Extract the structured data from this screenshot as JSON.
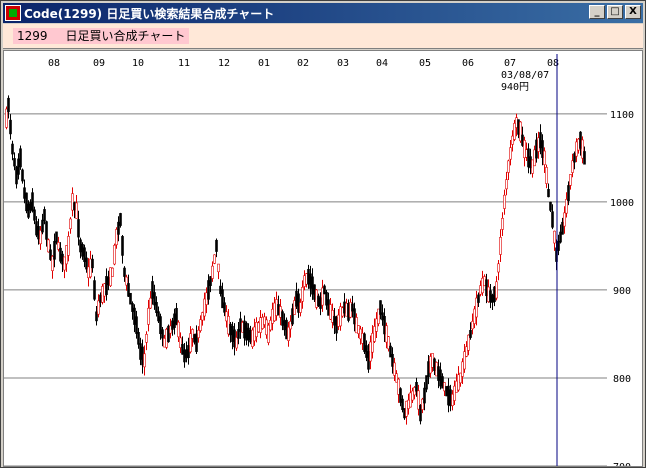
{
  "window": {
    "title": "Code(1299)  日足買い検索結果合成チャート",
    "min_label": "_",
    "max_label": "□",
    "close_label": "X"
  },
  "header": {
    "code": "1299",
    "label": "日足買い合成チャート"
  },
  "colors": {
    "up": "#e00000",
    "down": "#000000",
    "cursor": "#000080",
    "grid": "#808080"
  },
  "chart_data": {
    "type": "candlestick",
    "x_tick_labels": [
      "08",
      "09",
      "10",
      "11",
      "12",
      "01",
      "02",
      "03",
      "04",
      "05",
      "06",
      "07",
      "08"
    ],
    "y_ticks": [
      700,
      800,
      900,
      1000,
      1100
    ],
    "ylim": [
      700,
      1160
    ],
    "cursor": {
      "date": "03/08/07",
      "price": "940円"
    },
    "path": [
      [
        0,
        1080
      ],
      [
        4,
        1110
      ],
      [
        8,
        1060
      ],
      [
        12,
        1030
      ],
      [
        16,
        1050
      ],
      [
        20,
        1010
      ],
      [
        24,
        990
      ],
      [
        28,
        1000
      ],
      [
        32,
        970
      ],
      [
        36,
        960
      ],
      [
        40,
        985
      ],
      [
        44,
        950
      ],
      [
        48,
        930
      ],
      [
        52,
        960
      ],
      [
        56,
        940
      ],
      [
        60,
        930
      ],
      [
        64,
        950
      ],
      [
        68,
        1000
      ],
      [
        72,
        990
      ],
      [
        76,
        950
      ],
      [
        80,
        940
      ],
      [
        84,
        920
      ],
      [
        88,
        930
      ],
      [
        92,
        870
      ],
      [
        96,
        890
      ],
      [
        100,
        900
      ],
      [
        104,
        910
      ],
      [
        108,
        920
      ],
      [
        112,
        960
      ],
      [
        116,
        980
      ],
      [
        120,
        920
      ],
      [
        124,
        900
      ],
      [
        128,
        880
      ],
      [
        132,
        860
      ],
      [
        136,
        830
      ],
      [
        140,
        820
      ],
      [
        144,
        870
      ],
      [
        148,
        900
      ],
      [
        152,
        880
      ],
      [
        156,
        860
      ],
      [
        160,
        840
      ],
      [
        164,
        850
      ],
      [
        168,
        860
      ],
      [
        172,
        870
      ],
      [
        176,
        840
      ],
      [
        180,
        825
      ],
      [
        184,
        830
      ],
      [
        188,
        850
      ],
      [
        192,
        840
      ],
      [
        196,
        860
      ],
      [
        200,
        880
      ],
      [
        204,
        900
      ],
      [
        208,
        920
      ],
      [
        212,
        950
      ],
      [
        216,
        900
      ],
      [
        220,
        880
      ],
      [
        224,
        860
      ],
      [
        228,
        850
      ],
      [
        232,
        840
      ],
      [
        236,
        860
      ],
      [
        240,
        855
      ],
      [
        244,
        850
      ],
      [
        248,
        845
      ],
      [
        252,
        855
      ],
      [
        256,
        860
      ],
      [
        260,
        865
      ],
      [
        264,
        850
      ],
      [
        268,
        870
      ],
      [
        272,
        880
      ],
      [
        276,
        875
      ],
      [
        280,
        860
      ],
      [
        284,
        850
      ],
      [
        288,
        870
      ],
      [
        292,
        890
      ],
      [
        296,
        880
      ],
      [
        300,
        910
      ],
      [
        304,
        915
      ],
      [
        308,
        905
      ],
      [
        312,
        890
      ],
      [
        316,
        885
      ],
      [
        320,
        900
      ],
      [
        324,
        880
      ],
      [
        328,
        870
      ],
      [
        332,
        860
      ],
      [
        336,
        870
      ],
      [
        340,
        880
      ],
      [
        344,
        875
      ],
      [
        348,
        880
      ],
      [
        352,
        860
      ],
      [
        356,
        850
      ],
      [
        360,
        840
      ],
      [
        364,
        820
      ],
      [
        368,
        840
      ],
      [
        372,
        860
      ],
      [
        376,
        880
      ],
      [
        380,
        860
      ],
      [
        384,
        840
      ],
      [
        388,
        820
      ],
      [
        392,
        800
      ],
      [
        396,
        780
      ],
      [
        400,
        760
      ],
      [
        404,
        770
      ],
      [
        408,
        780
      ],
      [
        412,
        790
      ],
      [
        416,
        760
      ],
      [
        420,
        780
      ],
      [
        424,
        810
      ],
      [
        428,
        820
      ],
      [
        432,
        810
      ],
      [
        436,
        800
      ],
      [
        440,
        790
      ],
      [
        444,
        780
      ],
      [
        448,
        775
      ],
      [
        452,
        790
      ],
      [
        456,
        800
      ],
      [
        460,
        820
      ],
      [
        464,
        840
      ],
      [
        468,
        860
      ],
      [
        472,
        880
      ],
      [
        476,
        900
      ],
      [
        480,
        910
      ],
      [
        484,
        895
      ],
      [
        488,
        890
      ],
      [
        492,
        900
      ],
      [
        496,
        950
      ],
      [
        500,
        1000
      ],
      [
        504,
        1040
      ],
      [
        508,
        1070
      ],
      [
        512,
        1090
      ],
      [
        516,
        1080
      ],
      [
        520,
        1060
      ],
      [
        524,
        1050
      ],
      [
        528,
        1040
      ],
      [
        532,
        1060
      ],
      [
        536,
        1070
      ],
      [
        540,
        1050
      ],
      [
        544,
        1010
      ],
      [
        548,
        980
      ],
      [
        552,
        940
      ],
      [
        556,
        960
      ],
      [
        560,
        980
      ],
      [
        564,
        1010
      ],
      [
        568,
        1040
      ],
      [
        572,
        1060
      ],
      [
        576,
        1070
      ],
      [
        580,
        1050
      ]
    ]
  }
}
